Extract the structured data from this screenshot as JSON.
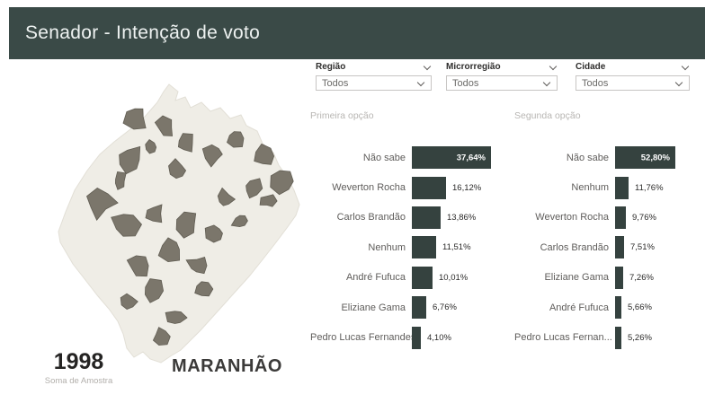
{
  "header": {
    "title": "Senador - Intenção de voto"
  },
  "filters": [
    {
      "label": "Região",
      "value": "Todos"
    },
    {
      "label": "Microrregião",
      "value": "Todos"
    },
    {
      "label": "Cidade",
      "value": "Todos"
    }
  ],
  "map": {
    "state_label": "MARANHÃO"
  },
  "sample_card": {
    "value": "1998",
    "label": "Soma de Amostra"
  },
  "chart_data": [
    {
      "type": "bar",
      "orientation": "horizontal",
      "title": "Primeira opção",
      "categories": [
        "Não sabe",
        "Weverton Rocha",
        "Carlos Brandão",
        "Nenhum",
        "André Fufuca",
        "Eliziane Gama",
        "Pedro Lucas Fernandes"
      ],
      "values": [
        37.64,
        16.12,
        13.86,
        11.51,
        10.01,
        6.76,
        4.1
      ],
      "value_labels": [
        "37,64%",
        "16,12%",
        "13,86%",
        "11,51%",
        "10,01%",
        "6,76%",
        "4,10%"
      ],
      "bar_color": "#35423f",
      "xlim": [
        0,
        40
      ],
      "grid": false,
      "legend": false
    },
    {
      "type": "bar",
      "orientation": "horizontal",
      "title": "Segunda opção",
      "categories": [
        "Não sabe",
        "Nenhum",
        "Weverton Rocha",
        "Carlos Brandão",
        "Eliziane Gama",
        "André Fufuca",
        "Pedro Lucas Fernan..."
      ],
      "values": [
        52.8,
        11.76,
        9.76,
        7.51,
        7.26,
        5.66,
        5.26
      ],
      "value_labels": [
        "52,80%",
        "11,76%",
        "9,76%",
        "7,51%",
        "7,26%",
        "5,66%",
        "5,26%"
      ],
      "bar_color": "#35423f",
      "xlim": [
        0,
        55
      ],
      "grid": false,
      "legend": false
    }
  ],
  "colors": {
    "header_bg": "#3a4a47",
    "bar": "#35423f",
    "map_base": "#efede6",
    "map_highlight": "#7b766b",
    "map_highlight_stroke": "#615d53",
    "chart_title": "#b8b6b3"
  },
  "icons": {
    "chevron_down": "chevron-down"
  }
}
